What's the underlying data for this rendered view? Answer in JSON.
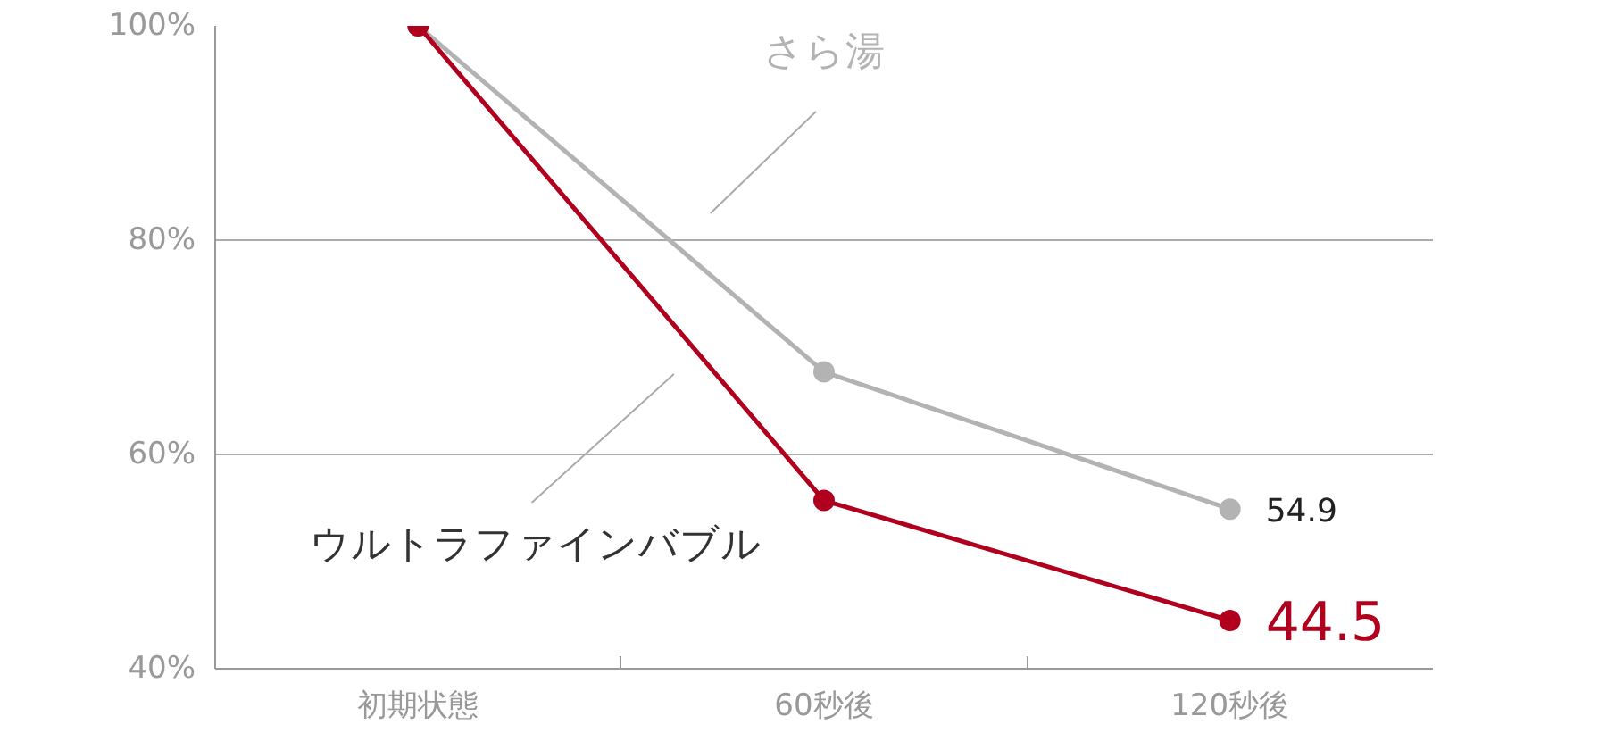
{
  "chart_data": {
    "type": "line",
    "categories": [
      "初期状態",
      "60秒後",
      "120秒後"
    ],
    "series": [
      {
        "name": "さら湯",
        "color": "#b3b3b3",
        "values": [
          100,
          67.7,
          54.9
        ],
        "value_labels": [
          null,
          null,
          "54.9"
        ]
      },
      {
        "name": "ウルトラファインバブル",
        "color": "#b0001e",
        "values": [
          100,
          55.7,
          44.5
        ],
        "value_labels": [
          null,
          null,
          "44.5"
        ]
      }
    ],
    "ylim": [
      40,
      100
    ],
    "yticks": [
      {
        "value": 40,
        "label": "40%"
      },
      {
        "value": 60,
        "label": "60%"
      },
      {
        "value": 80,
        "label": "80%"
      },
      {
        "value": 100,
        "label": "100%"
      }
    ],
    "grid": "y",
    "marker": "circle",
    "line_style": "solid"
  }
}
